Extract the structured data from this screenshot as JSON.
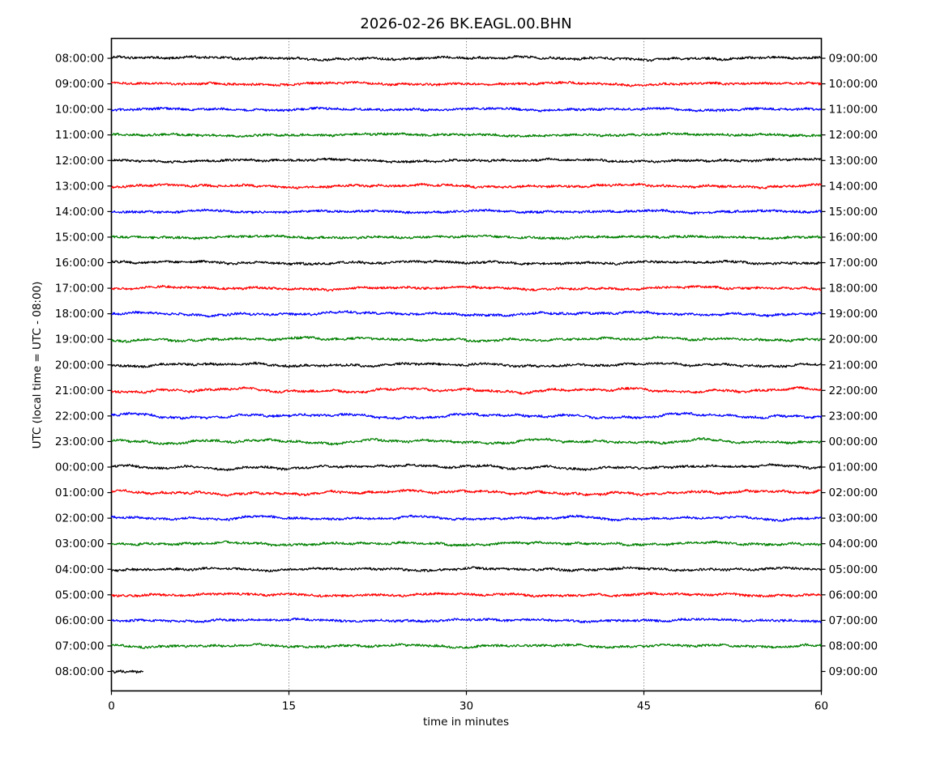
{
  "chart_data": {
    "type": "line",
    "subtype": "seismogram-dayplot",
    "title": "2026-02-26 BK.EAGL.00.BHN",
    "xlabel": "time in minutes",
    "ylabel": "UTC (local time = UTC - 08:00)",
    "xlim": [
      0,
      60
    ],
    "x_ticks": [
      0,
      15,
      30,
      45,
      60
    ],
    "grid": {
      "vertical_dotted_at": [
        15,
        30,
        45
      ],
      "horizontal": false
    },
    "legend": "none",
    "color_cycle": [
      "#000000",
      "#ff0000",
      "#0000ff",
      "#008000"
    ],
    "note": "25 stacked one-hour traces of ambient seismic noise; left axis UTC start time, right axis local equivalent (UTC - 08:00 shown one hour later per row); final trace is a short ~2.7 minute segment",
    "rows": [
      {
        "utc_left": "08:00:00",
        "local_right": "09:00:00",
        "color": "#000000",
        "duration_min": 60,
        "rel_amplitude": 1.0
      },
      {
        "utc_left": "09:00:00",
        "local_right": "10:00:00",
        "color": "#ff0000",
        "duration_min": 60,
        "rel_amplitude": 0.9
      },
      {
        "utc_left": "10:00:00",
        "local_right": "11:00:00",
        "color": "#0000ff",
        "duration_min": 60,
        "rel_amplitude": 0.8
      },
      {
        "utc_left": "11:00:00",
        "local_right": "12:00:00",
        "color": "#008000",
        "duration_min": 60,
        "rel_amplitude": 0.8
      },
      {
        "utc_left": "12:00:00",
        "local_right": "13:00:00",
        "color": "#000000",
        "duration_min": 60,
        "rel_amplitude": 0.9
      },
      {
        "utc_left": "13:00:00",
        "local_right": "14:00:00",
        "color": "#ff0000",
        "duration_min": 60,
        "rel_amplitude": 1.0
      },
      {
        "utc_left": "14:00:00",
        "local_right": "15:00:00",
        "color": "#0000ff",
        "duration_min": 60,
        "rel_amplitude": 0.8
      },
      {
        "utc_left": "15:00:00",
        "local_right": "16:00:00",
        "color": "#008000",
        "duration_min": 60,
        "rel_amplitude": 0.8
      },
      {
        "utc_left": "16:00:00",
        "local_right": "17:00:00",
        "color": "#000000",
        "duration_min": 60,
        "rel_amplitude": 1.0
      },
      {
        "utc_left": "17:00:00",
        "local_right": "18:00:00",
        "color": "#ff0000",
        "duration_min": 60,
        "rel_amplitude": 1.0
      },
      {
        "utc_left": "18:00:00",
        "local_right": "19:00:00",
        "color": "#0000ff",
        "duration_min": 60,
        "rel_amplitude": 1.2
      },
      {
        "utc_left": "19:00:00",
        "local_right": "20:00:00",
        "color": "#008000",
        "duration_min": 60,
        "rel_amplitude": 1.1
      },
      {
        "utc_left": "20:00:00",
        "local_right": "21:00:00",
        "color": "#000000",
        "duration_min": 60,
        "rel_amplitude": 1.1
      },
      {
        "utc_left": "21:00:00",
        "local_right": "22:00:00",
        "color": "#ff0000",
        "duration_min": 60,
        "rel_amplitude": 1.5
      },
      {
        "utc_left": "22:00:00",
        "local_right": "23:00:00",
        "color": "#0000ff",
        "duration_min": 60,
        "rel_amplitude": 1.6
      },
      {
        "utc_left": "23:00:00",
        "local_right": "00:00:00",
        "color": "#008000",
        "duration_min": 60,
        "rel_amplitude": 1.5
      },
      {
        "utc_left": "00:00:00",
        "local_right": "01:00:00",
        "color": "#000000",
        "duration_min": 60,
        "rel_amplitude": 1.4
      },
      {
        "utc_left": "01:00:00",
        "local_right": "02:00:00",
        "color": "#ff0000",
        "duration_min": 60,
        "rel_amplitude": 1.4
      },
      {
        "utc_left": "02:00:00",
        "local_right": "03:00:00",
        "color": "#0000ff",
        "duration_min": 60,
        "rel_amplitude": 1.2
      },
      {
        "utc_left": "03:00:00",
        "local_right": "04:00:00",
        "color": "#008000",
        "duration_min": 60,
        "rel_amplitude": 1.0
      },
      {
        "utc_left": "04:00:00",
        "local_right": "05:00:00",
        "color": "#000000",
        "duration_min": 60,
        "rel_amplitude": 0.9
      },
      {
        "utc_left": "05:00:00",
        "local_right": "06:00:00",
        "color": "#ff0000",
        "duration_min": 60,
        "rel_amplitude": 0.9
      },
      {
        "utc_left": "06:00:00",
        "local_right": "07:00:00",
        "color": "#0000ff",
        "duration_min": 60,
        "rel_amplitude": 0.8
      },
      {
        "utc_left": "07:00:00",
        "local_right": "08:00:00",
        "color": "#008000",
        "duration_min": 60,
        "rel_amplitude": 0.9
      },
      {
        "utc_left": "08:00:00",
        "local_right": "09:00:00",
        "color": "#000000",
        "duration_min": 2.7,
        "rel_amplitude": 0.5
      }
    ]
  }
}
